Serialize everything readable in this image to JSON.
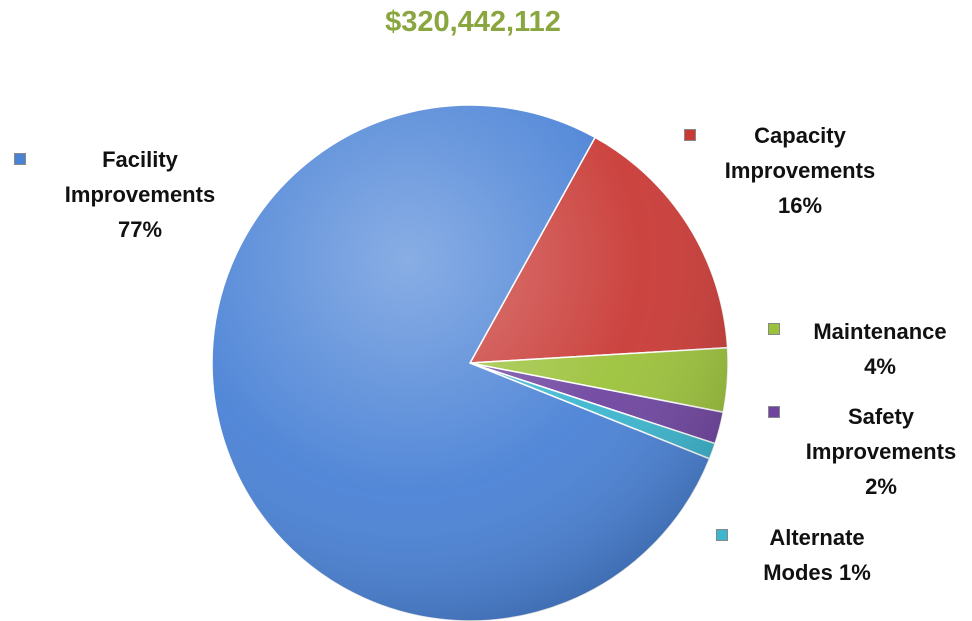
{
  "chart_data": {
    "type": "pie",
    "title": "$320,442,112",
    "slices": [
      {
        "name": "Facility Improvements",
        "label_lines": [
          "Facility",
          "Improvements",
          "77%"
        ],
        "value": 77,
        "color": "#4a82d6"
      },
      {
        "name": "Capacity Improvements",
        "label_lines": [
          "Capacity",
          "Improvements",
          "16%"
        ],
        "value": 16,
        "color": "#c93a36"
      },
      {
        "name": "Maintenance",
        "label_lines": [
          "Maintenance",
          "4%"
        ],
        "value": 4,
        "color": "#9cc23b"
      },
      {
        "name": "Safety Improvements",
        "label_lines": [
          "Safety",
          "Improvements",
          "2%"
        ],
        "value": 2,
        "color": "#6f45a0"
      },
      {
        "name": "Alternate Modes",
        "label_lines": [
          "Alternate",
          "Modes 1%"
        ],
        "value": 1,
        "color": "#3cb6cf"
      }
    ]
  }
}
